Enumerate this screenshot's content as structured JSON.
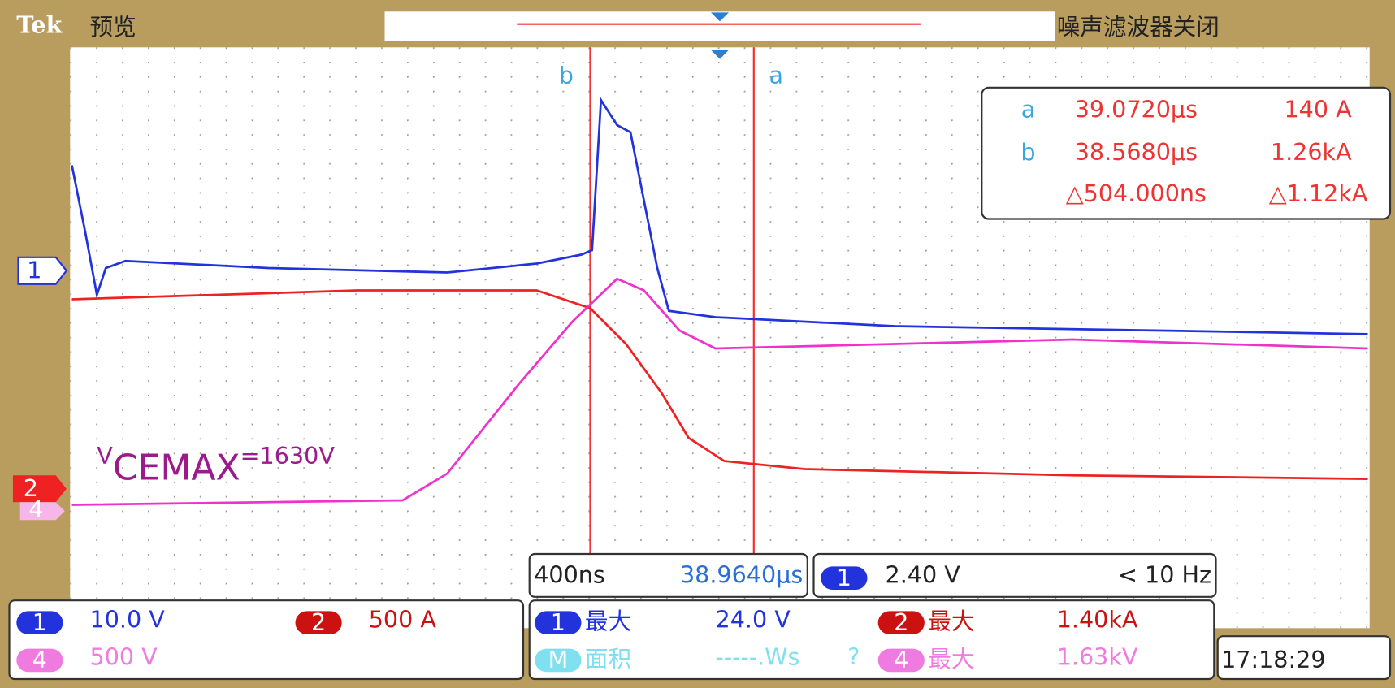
{
  "header": {
    "brand": "Tek",
    "mode": "预览",
    "status": "噪声滤波器关闭"
  },
  "channel_markers": [
    "1",
    "2",
    "4"
  ],
  "cursors": {
    "a": "a",
    "b": "b"
  },
  "readout": {
    "rows": [
      [
        "a",
        "39.0720µs",
        "140 A"
      ],
      [
        "b",
        "38.5680µs",
        "1.26kA"
      ]
    ],
    "delta": [
      "△504.000ns",
      "△1.12kA"
    ]
  },
  "annotation": {
    "main": "V",
    "sub": "CEMAX",
    "rest": "=1630V"
  },
  "timebase": {
    "scale": "400ns",
    "position": "38.9640µs"
  },
  "trigger": {
    "channel": "1",
    "level": "2.40 V",
    "rate": "< 10 Hz"
  },
  "channels": [
    [
      "1",
      "10.0 V"
    ],
    [
      "2",
      "500 A"
    ],
    [
      "4",
      "500 V"
    ]
  ],
  "measurements": [
    [
      "1",
      "最大",
      "24.0 V"
    ],
    [
      "M",
      "面积",
      "-----.Ws",
      "?"
    ],
    [
      "2",
      "最大",
      "1.40kA"
    ],
    [
      "4",
      "最大",
      "1.63kV"
    ]
  ],
  "clock": "17:18:29"
}
